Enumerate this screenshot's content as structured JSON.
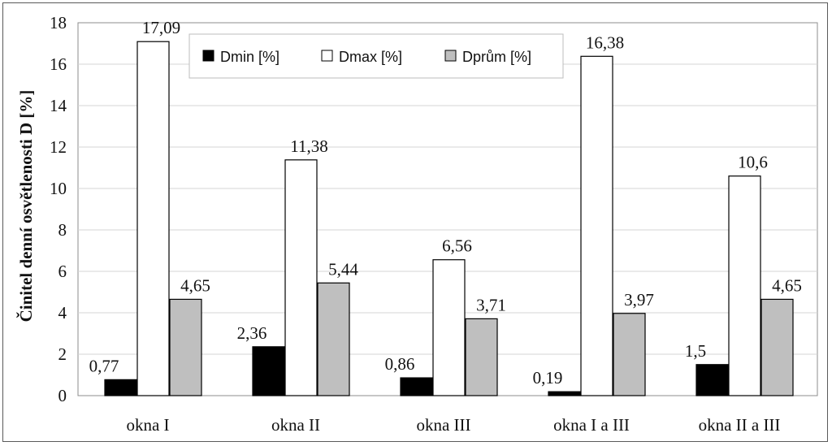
{
  "chart_data": {
    "type": "bar",
    "ylabel": "Činitel denní osvětlenosti D [%]",
    "ylim": [
      0,
      18
    ],
    "yticks": [
      0,
      2,
      4,
      6,
      8,
      10,
      12,
      14,
      16,
      18
    ],
    "grid": true,
    "legend_position": "top-left",
    "categories": [
      "okna I",
      "okna II",
      "okna III",
      "okna I a III",
      "okna II a III"
    ],
    "series": [
      {
        "name": "Dmin [%]",
        "color": "#000000",
        "values": [
          0.77,
          2.36,
          0.86,
          0.19,
          1.5
        ],
        "labels": [
          "0,77",
          "2,36",
          "0,86",
          "0,19",
          "1,5"
        ]
      },
      {
        "name": "Dmax [%]",
        "color": "#ffffff",
        "values": [
          17.09,
          11.38,
          6.56,
          16.38,
          10.6
        ],
        "labels": [
          "17,09",
          "11,38",
          "6,56",
          "16,38",
          "10,6"
        ]
      },
      {
        "name": "Dprům [%]",
        "color": "#bfbfbf",
        "values": [
          4.65,
          5.44,
          3.71,
          3.97,
          4.65
        ],
        "labels": [
          "4,65",
          "5,44",
          "3,71",
          "3,97",
          "4,65"
        ]
      }
    ]
  }
}
